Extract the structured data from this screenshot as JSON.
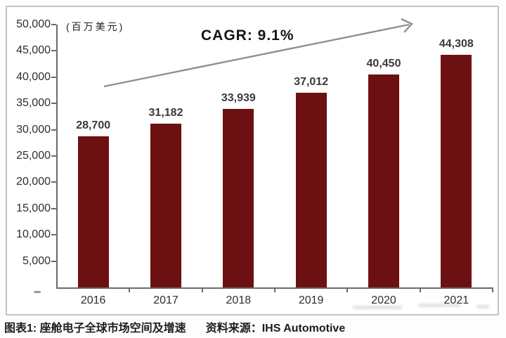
{
  "figure": {
    "caption_label": "图表1: 座舱电子全球市场空间及增速",
    "caption_source": "资料来源：IHS Automotive"
  },
  "chart_data": {
    "type": "bar",
    "title": "CAGR: 9.1%",
    "unit_label": "(百万美元)",
    "categories": [
      "2016",
      "2017",
      "2018",
      "2019",
      "2020",
      "2021"
    ],
    "values": [
      28700,
      31182,
      33939,
      37012,
      40450,
      44308
    ],
    "value_labels": [
      "28,700",
      "31,182",
      "33,939",
      "37,012",
      "40,450",
      "44,308"
    ],
    "ylim": [
      0,
      50000
    ],
    "ytick_step": 5000,
    "ytick_labels": [
      "5,000",
      "10,000",
      "15,000",
      "20,000",
      "25,000",
      "30,000",
      "35,000",
      "40,000",
      "45,000",
      "50,000"
    ],
    "grid": false,
    "legend": null,
    "bar_color": "#6d1012",
    "axis_color": "#6a6a6a",
    "annotations": [
      {
        "type": "trend-arrow",
        "direction": "up-right",
        "text": "CAGR: 9.1%"
      }
    ]
  }
}
